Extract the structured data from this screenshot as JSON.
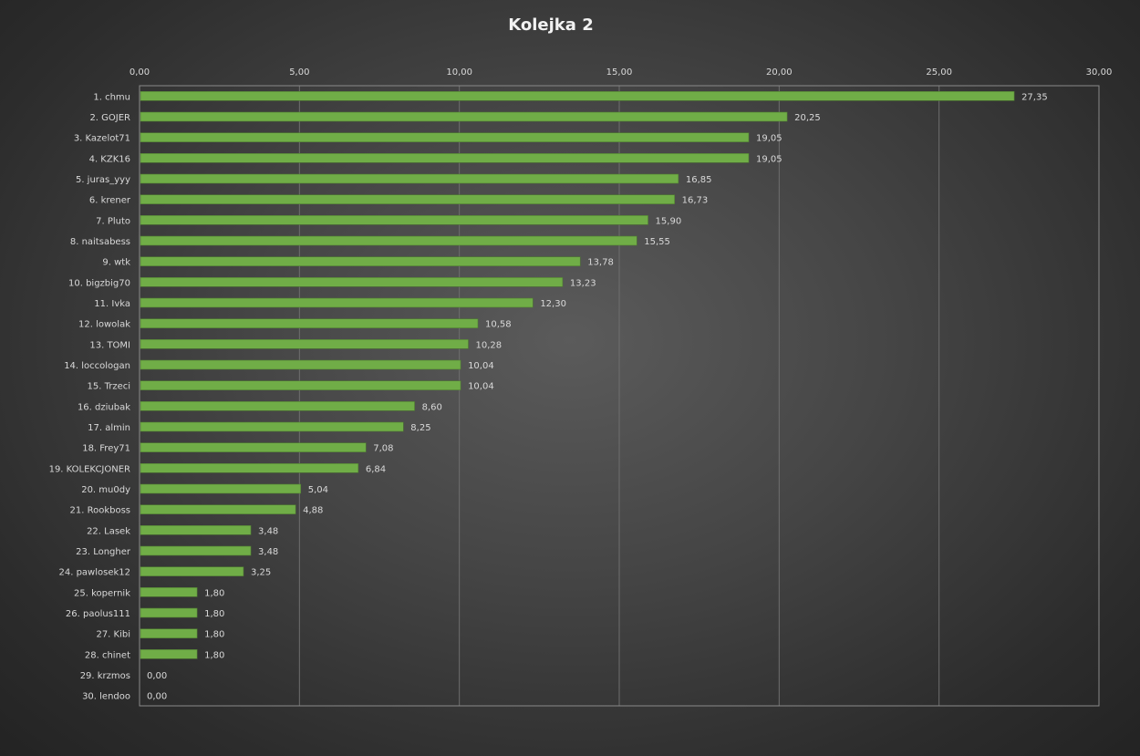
{
  "chart_data": {
    "type": "bar",
    "orientation": "horizontal",
    "title": "Kolejka  2",
    "xlabel": "",
    "ylabel": "",
    "xlim": [
      0,
      30
    ],
    "x_ticks": [
      "0,00",
      "5,00",
      "10,00",
      "15,00",
      "20,00",
      "25,00",
      "30,00"
    ],
    "x_tick_values": [
      0,
      5,
      10,
      15,
      20,
      25,
      30
    ],
    "grid": true,
    "bar_color": "#70ad47",
    "categories": [
      "1.  chmu",
      "2.  GOJER",
      "3.  Kazelot71",
      "4.  KZK16",
      "5.  juras_yyy",
      "6.  krener",
      "7.  Pluto",
      "8.  naitsabess",
      "9.  wtk",
      "10.  bigzbig70",
      "11.  Ivka",
      "12.  lowolak",
      "13.  TOMI",
      "14.  loccologan",
      "15.  Trzeci",
      "16.  dziubak",
      "17.  almin",
      "18.  Frey71",
      "19.  KOLEKCJONER",
      "20.  mu0dy",
      "21.  Rookboss",
      "22.  Lasek",
      "23.  Longher",
      "24.  pawlosek12",
      "25.  kopernik",
      "26.  paolus111",
      "27.  Kibi",
      "28.  chinet",
      "29.  krzmos",
      "30.  lendoo"
    ],
    "values": [
      27.35,
      20.25,
      19.05,
      19.05,
      16.85,
      16.73,
      15.9,
      15.55,
      13.78,
      13.23,
      12.3,
      10.58,
      10.28,
      10.04,
      10.04,
      8.6,
      8.25,
      7.08,
      6.84,
      5.04,
      4.88,
      3.48,
      3.48,
      3.25,
      1.8,
      1.8,
      1.8,
      1.8,
      0.0,
      0.0
    ],
    "value_labels": [
      "27,35",
      "20,25",
      "19,05",
      "19,05",
      "16,85",
      "16,73",
      "15,90",
      "15,55",
      "13,78",
      "13,23",
      "12,30",
      "10,58",
      "10,28",
      "10,04",
      "10,04",
      "8,60",
      "8,25",
      "7,08",
      "6,84",
      "5,04",
      "4,88",
      "3,48",
      "3,48",
      "3,25",
      "1,80",
      "1,80",
      "1,80",
      "1,80",
      "0,00",
      "0,00"
    ]
  }
}
